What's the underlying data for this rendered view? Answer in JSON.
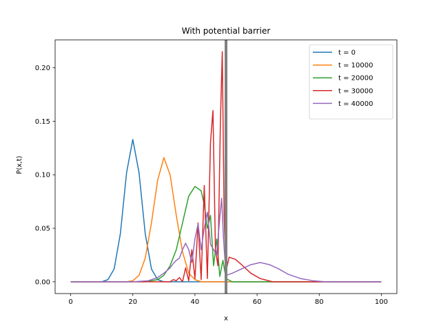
{
  "chart_data": {
    "type": "line",
    "title": "With potential barrier",
    "xlabel": "x",
    "ylabel": "P(x,t)",
    "xlim": [
      -5,
      105
    ],
    "ylim": [
      -0.011,
      0.226
    ],
    "xticks": [
      "0",
      "20",
      "40",
      "60",
      "80",
      "100"
    ],
    "yticks": [
      "0.00",
      "0.05",
      "0.10",
      "0.15",
      "0.20"
    ],
    "grid": false,
    "legend_position": "top-right",
    "barrier": {
      "x": 50,
      "color": "#808080"
    },
    "series": [
      {
        "name": "t = 0",
        "color": "#1f77b4",
        "points": [
          [
            0,
            0
          ],
          [
            10,
            0
          ],
          [
            12,
            0.002
          ],
          [
            14,
            0.012
          ],
          [
            16,
            0.045
          ],
          [
            18,
            0.102
          ],
          [
            20,
            0.133
          ],
          [
            22,
            0.102
          ],
          [
            24,
            0.045
          ],
          [
            26,
            0.012
          ],
          [
            28,
            0.002
          ],
          [
            30,
            0
          ],
          [
            100,
            0
          ]
        ]
      },
      {
        "name": "t = 10000",
        "color": "#ff7f0e",
        "points": [
          [
            0,
            0
          ],
          [
            18,
            0
          ],
          [
            20,
            0.001
          ],
          [
            22,
            0.006
          ],
          [
            24,
            0.022
          ],
          [
            26,
            0.055
          ],
          [
            28,
            0.095
          ],
          [
            30,
            0.116
          ],
          [
            32,
            0.1
          ],
          [
            34,
            0.062
          ],
          [
            36,
            0.028
          ],
          [
            38,
            0.008
          ],
          [
            40,
            0.002
          ],
          [
            42,
            0
          ],
          [
            100,
            0
          ]
        ]
      },
      {
        "name": "t = 20000",
        "color": "#2ca02c",
        "points": [
          [
            0,
            0
          ],
          [
            24,
            0
          ],
          [
            28,
            0.002
          ],
          [
            30,
            0.006
          ],
          [
            32,
            0.015
          ],
          [
            34,
            0.03
          ],
          [
            36,
            0.055
          ],
          [
            38,
            0.08
          ],
          [
            40,
            0.089
          ],
          [
            42,
            0.085
          ],
          [
            43,
            0.072
          ],
          [
            44,
            0.05
          ],
          [
            45,
            0.062
          ],
          [
            46,
            0.015
          ],
          [
            47,
            0.04
          ],
          [
            48,
            0.005
          ],
          [
            49,
            0.02
          ],
          [
            50,
            0.003
          ],
          [
            52,
            0
          ],
          [
            100,
            0
          ]
        ]
      },
      {
        "name": "t = 30000",
        "color": "#d62728",
        "points": [
          [
            0,
            0
          ],
          [
            32,
            0
          ],
          [
            33,
            0.002
          ],
          [
            34,
            0.001
          ],
          [
            35,
            0.004
          ],
          [
            36,
            0
          ],
          [
            37,
            0.013
          ],
          [
            38,
            0.001
          ],
          [
            39,
            0.03
          ],
          [
            40,
            0.003
          ],
          [
            41,
            0.055
          ],
          [
            42,
            0.002
          ],
          [
            43,
            0.09
          ],
          [
            44,
            0.003
          ],
          [
            45,
            0.13
          ],
          [
            45.8,
            0.16
          ],
          [
            46.6,
            0.03
          ],
          [
            47.4,
            0.015
          ],
          [
            48.2,
            0.15
          ],
          [
            48.8,
            0.215
          ],
          [
            49.4,
            0.06
          ],
          [
            50,
            0.01
          ],
          [
            51,
            0.023
          ],
          [
            53,
            0.021
          ],
          [
            55,
            0.016
          ],
          [
            58,
            0.008
          ],
          [
            61,
            0.003
          ],
          [
            65,
            0
          ],
          [
            100,
            0
          ]
        ]
      },
      {
        "name": "t = 40000",
        "color": "#9467bd",
        "points": [
          [
            0,
            0
          ],
          [
            20,
            0
          ],
          [
            25,
            0.001
          ],
          [
            28,
            0.004
          ],
          [
            30,
            0.008
          ],
          [
            32,
            0.013
          ],
          [
            33,
            0.017
          ],
          [
            34,
            0.02
          ],
          [
            35,
            0.022
          ],
          [
            36,
            0.03
          ],
          [
            37,
            0.036
          ],
          [
            38,
            0.03
          ],
          [
            39,
            0.018
          ],
          [
            40,
            0.04
          ],
          [
            41,
            0.054
          ],
          [
            42,
            0.03
          ],
          [
            43,
            0.05
          ],
          [
            44,
            0.065
          ],
          [
            45,
            0.035
          ],
          [
            46,
            0.03
          ],
          [
            47,
            0.025
          ],
          [
            48,
            0.06
          ],
          [
            48.6,
            0.078
          ],
          [
            49.2,
            0.04
          ],
          [
            50,
            0.006
          ],
          [
            52,
            0.008
          ],
          [
            55,
            0.012
          ],
          [
            58,
            0.016
          ],
          [
            61,
            0.018
          ],
          [
            64,
            0.016
          ],
          [
            67,
            0.012
          ],
          [
            70,
            0.007
          ],
          [
            74,
            0.003
          ],
          [
            78,
            0.001
          ],
          [
            82,
            0
          ],
          [
            100,
            0
          ]
        ]
      }
    ]
  }
}
